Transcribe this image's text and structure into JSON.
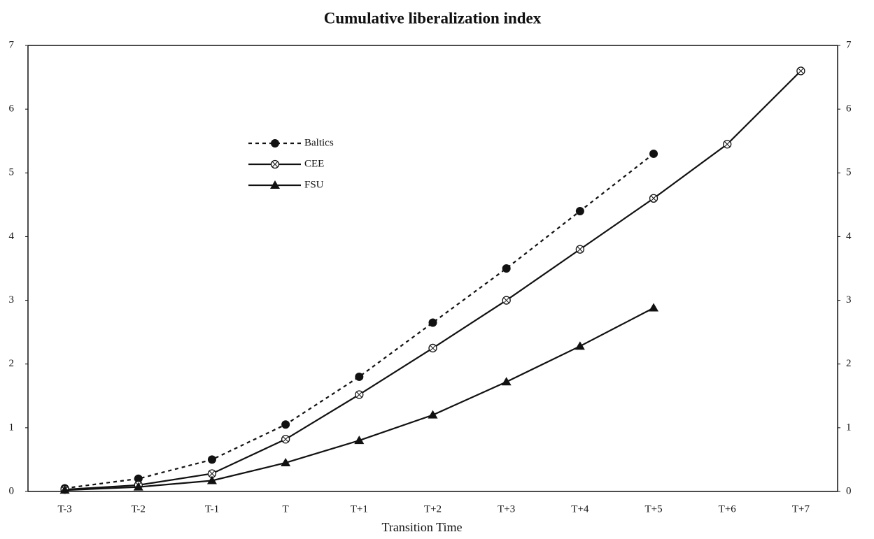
{
  "chart_data": {
    "type": "line",
    "title": "Cumulative liberalization index",
    "xlabel": "Transition Time",
    "categories": [
      "T-3",
      "T-2",
      "T-1",
      "T",
      "T+1",
      "T+2",
      "T+3",
      "T+4",
      "T+5",
      "T+6",
      "T+7"
    ],
    "series": [
      {
        "name": "Baltics",
        "color": "#111111",
        "marker": "circle",
        "linestyle": "dotted",
        "values": [
          0.05,
          0.2,
          0.5,
          1.05,
          1.8,
          2.65,
          3.5,
          4.4,
          5.3,
          null,
          null
        ]
      },
      {
        "name": "CEE",
        "color": "#111111",
        "marker": "hatched-circle",
        "linestyle": "solid",
        "values": [
          0.03,
          0.1,
          0.28,
          0.82,
          1.52,
          2.25,
          3.0,
          3.8,
          4.6,
          5.45,
          6.6
        ]
      },
      {
        "name": "FSU",
        "color": "#111111",
        "marker": "triangle",
        "linestyle": "solid",
        "values": [
          0.02,
          0.07,
          0.17,
          0.45,
          0.8,
          1.2,
          1.72,
          2.28,
          2.88,
          null,
          null
        ]
      }
    ],
    "ylim": [
      0,
      7
    ],
    "yticks": [
      0,
      1,
      2,
      3,
      4,
      5,
      6,
      7
    ],
    "y2lim": [
      0,
      7
    ],
    "y2ticks": [
      0,
      1,
      2,
      3,
      4,
      5,
      6,
      7
    ],
    "legend": "upper left"
  }
}
